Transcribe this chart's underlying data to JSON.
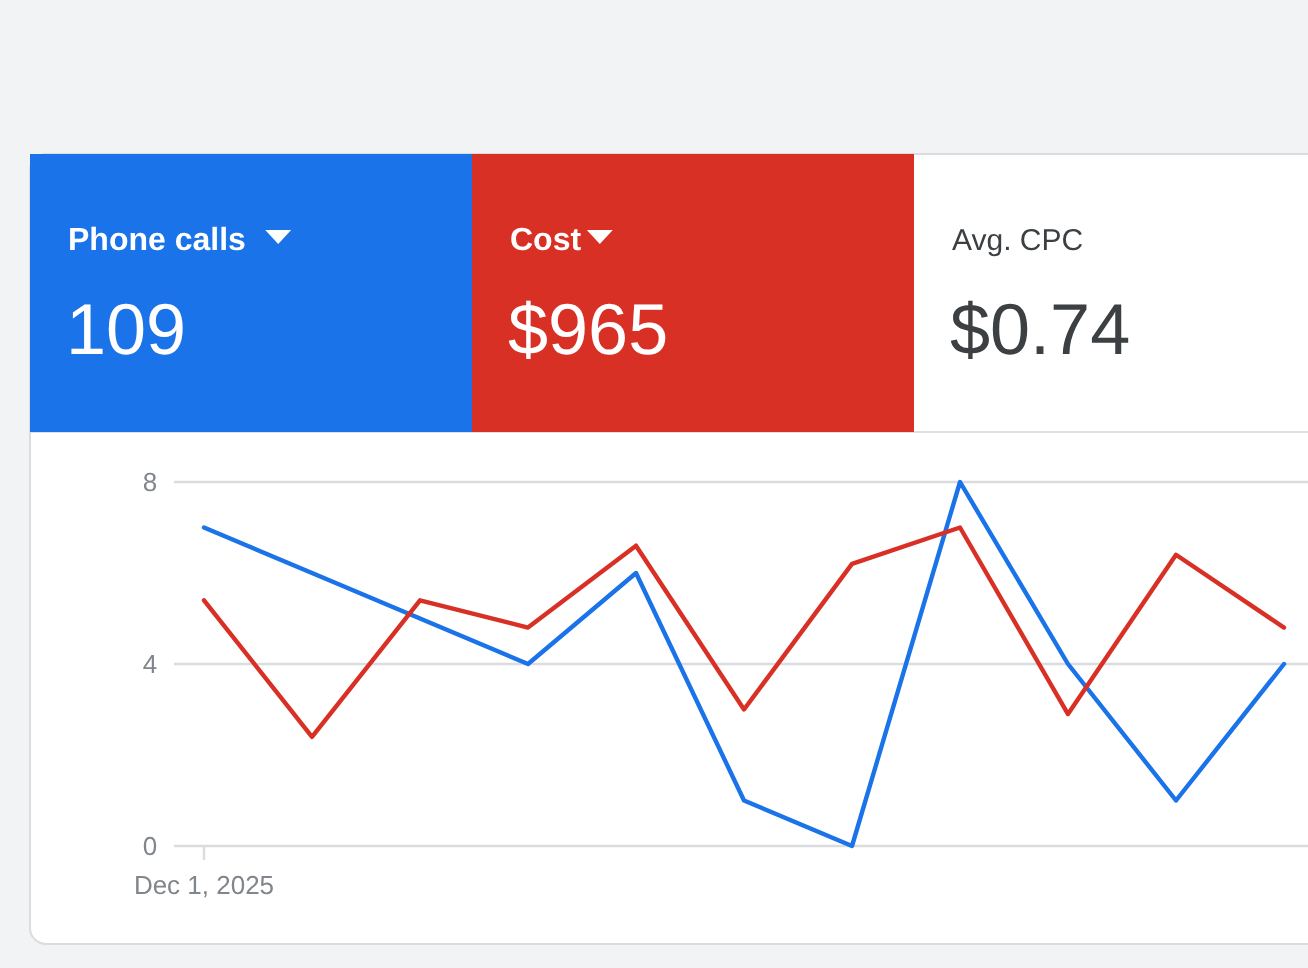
{
  "chart_data": {
    "type": "line",
    "categories": [
      "Dec 1, 2025",
      null,
      null,
      null,
      null,
      null,
      null,
      null,
      null,
      null,
      null
    ],
    "series": [
      {
        "color": "#1a73e8",
        "values": [
          7,
          6,
          5,
          4,
          6,
          1,
          0,
          8,
          4,
          1,
          4
        ]
      },
      {
        "color": "#d93025",
        "values": [
          5.4,
          2.4,
          5.4,
          4.8,
          6.6,
          3.0,
          6.2,
          7.0,
          2.9,
          6.4,
          4.8
        ]
      }
    ],
    "annotations": [
      "Phone calls",
      "109",
      "Cost",
      "$965",
      "Avg. CPC",
      "$0.74"
    ],
    "ylim": [
      0,
      8
    ],
    "yticks": [
      0,
      4,
      8
    ],
    "grid": "y"
  }
}
